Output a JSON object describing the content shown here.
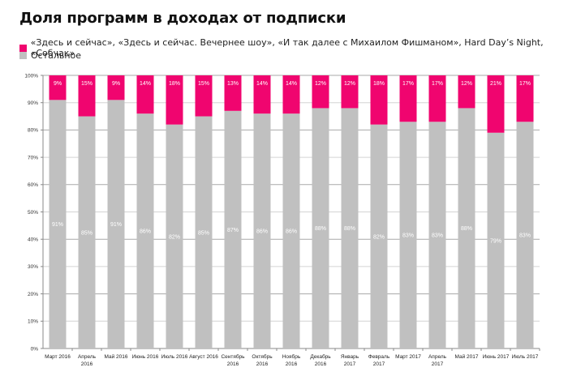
{
  "chart_data": {
    "type": "bar",
    "stacked": true,
    "title": "Доля программ в доходах от подписки",
    "xlabel": "",
    "ylabel": "",
    "ylim": [
      0,
      100
    ],
    "yticks": [
      "0%",
      "10%",
      "20%",
      "30%",
      "40%",
      "50%",
      "60%",
      "70%",
      "80%",
      "90%",
      "100%"
    ],
    "grid": true,
    "legend_position": "top-left",
    "categories": [
      [
        "Март 2016"
      ],
      [
        "Апрель",
        "2016"
      ],
      [
        "Май 2016"
      ],
      [
        "Июнь 2016"
      ],
      [
        "Июль 2016"
      ],
      [
        "Август 2016"
      ],
      [
        "Сентябрь",
        "2016"
      ],
      [
        "Октябрь",
        "2016"
      ],
      [
        "Ноябрь",
        "2016"
      ],
      [
        "Декабрь",
        "2016"
      ],
      [
        "Январь",
        "2017"
      ],
      [
        "Февраль",
        "2017"
      ],
      [
        "Март 2017"
      ],
      [
        "Апрель",
        "2017"
      ],
      [
        "Май 2017"
      ],
      [
        "Июнь 2017"
      ],
      [
        "Июль 2017"
      ]
    ],
    "series": [
      {
        "name": "Остальное",
        "color": "#c0c0c0",
        "values": [
          91,
          85,
          91,
          86,
          82,
          85,
          87,
          86,
          86,
          88,
          88,
          82,
          83,
          83,
          88,
          79,
          83
        ],
        "labels": [
          "91%",
          "85%",
          "91%",
          "86%",
          "82%",
          "85%",
          "87%",
          "86%",
          "86%",
          "88%",
          "88%",
          "82%",
          "83%",
          "83%",
          "88%",
          "79%",
          "83%"
        ]
      },
      {
        "name": "«Здесь и сейчас»,  «Здесь и сейчас. Вечернее шоу», «И так далее с Михаилом Фишманом»,  Hard Day’s Night, «Собчак»",
        "color": "#f0056f",
        "values": [
          9,
          15,
          9,
          14,
          18,
          15,
          13,
          14,
          14,
          12,
          12,
          18,
          17,
          17,
          12,
          21,
          17
        ],
        "labels": [
          "9%",
          "15%",
          "9%",
          "14%",
          "18%",
          "15%",
          "13%",
          "14%",
          "14%",
          "12%",
          "12%",
          "18%",
          "17%",
          "17%",
          "12%",
          "21%",
          "17%"
        ]
      }
    ]
  }
}
